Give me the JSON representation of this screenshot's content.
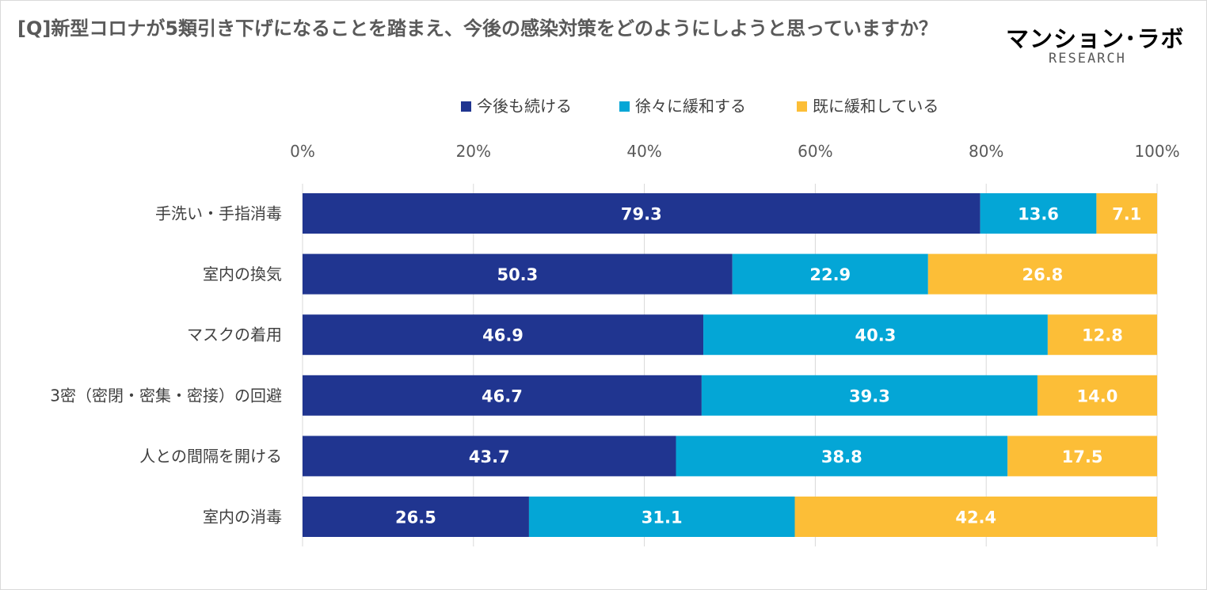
{
  "title": "[Q]新型コロナが5類引き下げになることを踏まえ、今後の感染対策をどのようにしようと思っていますか？",
  "logo": {
    "main": "マンション･ラボ",
    "sub": "RESEARCH"
  },
  "chart_data": {
    "type": "bar",
    "orientation": "horizontal",
    "stacked": true,
    "title": "[Q]新型コロナが5類引き下げになることを踏まえ、今後の感染対策をどのようにしようと思っていますか？",
    "categories": [
      "手洗い・手指消毒",
      "室内の換気",
      "マスクの着用",
      "3密（密閉・密集・密接）の回避",
      "人との間隔を開ける",
      "室内の消毒"
    ],
    "series": [
      {
        "name": "今後も続ける",
        "color": "#203590",
        "values": [
          79.3,
          50.3,
          46.9,
          46.7,
          43.7,
          26.5
        ]
      },
      {
        "name": "徐々に緩和する",
        "color": "#04A6D6",
        "values": [
          13.6,
          22.9,
          40.3,
          39.3,
          38.8,
          31.1
        ]
      },
      {
        "name": "既に緩和している",
        "color": "#FCBE37",
        "values": [
          7.1,
          26.8,
          12.8,
          14.0,
          17.5,
          42.4
        ]
      }
    ],
    "xlim": [
      0,
      100
    ],
    "xticks": [
      "0%",
      "20%",
      "40%",
      "60%",
      "80%",
      "100%"
    ],
    "xtick_values": [
      0,
      20,
      40,
      60,
      80,
      100
    ],
    "grid": true,
    "legend_position": "top-center",
    "label_format": "one-decimal"
  }
}
